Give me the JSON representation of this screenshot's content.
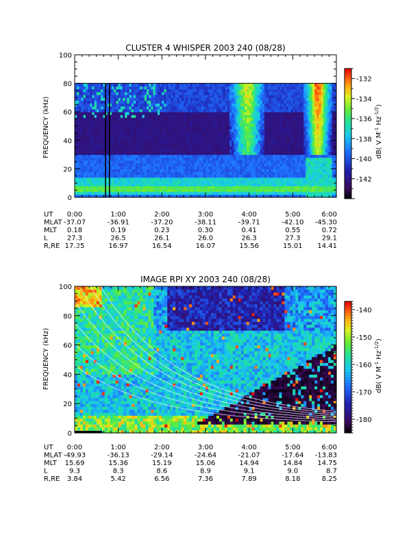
{
  "chart_data": [
    {
      "type": "heatmap",
      "title": "CLUSTER 4 WHISPER 2003 240 (08/28)",
      "ylabel": "FREQUENCY (kHz)",
      "ylim": [
        0,
        100
      ],
      "yticks": [
        "0",
        "20",
        "40",
        "60",
        "80",
        "100"
      ],
      "data_top_khz": 80,
      "xlim": [
        "0:00",
        "6:00"
      ],
      "colorbar": {
        "label": "dB( V M⁻¹ Hz⁻¹ᐟ²)",
        "label_parts": [
          "dB( V M",
          "-1",
          " Hz",
          "-1/2",
          ")"
        ],
        "range": [
          -144,
          -131
        ],
        "ticks": [
          "-132",
          "-134",
          "-136",
          "-138",
          "-140",
          "-142"
        ],
        "tick_values": [
          -132,
          -134,
          -136,
          -138,
          -140,
          -142
        ]
      },
      "ephemeris": {
        "labels": [
          "UT",
          "MLAT",
          "MLT",
          "L",
          "R,RE"
        ],
        "ut": [
          "0:00",
          "1:00",
          "2:00",
          "3:00",
          "4:00",
          "5:00",
          "6:00"
        ],
        "mlat": [
          "-37.07",
          "-36.91",
          "-37.20",
          "-38.11",
          "-39.71",
          "-42.10",
          "-45.30"
        ],
        "mlt": [
          "0.18",
          "0.19",
          "0.23",
          "0.30",
          "0.41",
          "0.55",
          "0.72"
        ],
        "l": [
          "27.3",
          "26.5",
          "26.1",
          "26.0",
          "26.3",
          "27.3",
          "29.1"
        ],
        "r_re": [
          "17.35",
          "16.97",
          "16.54",
          "16.07",
          "15.56",
          "15.01",
          "14.41"
        ]
      }
    },
    {
      "type": "heatmap",
      "title": "IMAGE RPI XY 2003 240 (08/28)",
      "ylabel": "FREQUENCY (kHz)",
      "ylim": [
        0,
        100
      ],
      "yticks": [
        "0",
        "20",
        "40",
        "60",
        "80",
        "100"
      ],
      "xlim": [
        "0:00",
        "6:00"
      ],
      "colorbar": {
        "label_parts": [
          "dB( V M",
          "-1",
          " Hz",
          "-1/2",
          ")"
        ],
        "range": [
          -185,
          -137
        ],
        "ticks": [
          "-140",
          "-150",
          "-160",
          "-170",
          "-180"
        ],
        "tick_values": [
          -140,
          -150,
          -160,
          -170,
          -180
        ]
      },
      "ephemeris": {
        "labels": [
          "UT",
          "MLAT",
          "MLT",
          "L",
          "R,RE"
        ],
        "ut": [
          "0:00",
          "1:00",
          "2:00",
          "3:00",
          "4:00",
          "5:00",
          "6:00"
        ],
        "mlat": [
          "-49.93",
          "-36.13",
          "-29.14",
          "-24.64",
          "-21.07",
          "-17.64",
          "-13.83"
        ],
        "mlt": [
          "15.69",
          "15.36",
          "15.19",
          "15.06",
          "14.94",
          "14.84",
          "14.75"
        ],
        "l": [
          "9.3",
          "8.3",
          "8.6",
          "8.9",
          "9.1",
          "9.0",
          "8.7"
        ],
        "r_re": [
          "3.84",
          "5.42",
          "6.56",
          "7.36",
          "7.89",
          "8.18",
          "8.25"
        ]
      }
    }
  ]
}
